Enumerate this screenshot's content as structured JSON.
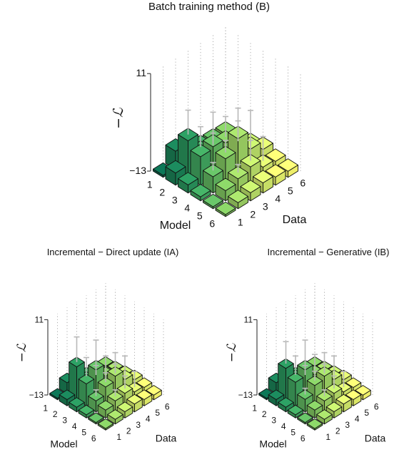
{
  "chart_data": [
    {
      "type": "bar3d",
      "title": "Batch training method (B)",
      "xlabel": "Model",
      "ylabel": "Data",
      "zlabel": "−ℒ",
      "model_ticks": [
        "1",
        "2",
        "3",
        "4",
        "5",
        "6"
      ],
      "data_ticks": [
        "1",
        "2",
        "3",
        "4",
        "5",
        "6"
      ],
      "zlim": [
        -13,
        11
      ],
      "z_ticks": [
        "−13",
        "11"
      ],
      "values": [
        [
          -12.5,
          -8.5,
          -11,
          -11.5,
          -11.8,
          -12
        ],
        [
          -10,
          -4,
          -9,
          -10.5,
          -11,
          -11.5
        ],
        [
          -11,
          -6,
          -5.5,
          -6.5,
          -9.5,
          -11
        ],
        [
          -12,
          -9,
          -6.5,
          -3.5,
          -8,
          -10
        ],
        [
          -12.5,
          -10.5,
          -9.5,
          -8.5,
          -10.5,
          -11
        ],
        [
          -12.5,
          -11.5,
          -11,
          -10.5,
          -11,
          -11.5
        ]
      ],
      "errors": [
        [
          0,
          0,
          0,
          0,
          0,
          0
        ],
        [
          0,
          6,
          5,
          3,
          0,
          0
        ],
        [
          0,
          0,
          7,
          5,
          5,
          0
        ],
        [
          0,
          2,
          3,
          6,
          8,
          0
        ],
        [
          0,
          0,
          2,
          5,
          6,
          0
        ],
        [
          0,
          0,
          0,
          0,
          0,
          0
        ]
      ]
    },
    {
      "type": "bar3d",
      "title": "Incremental − Direct update (IA)",
      "xlabel": "Model",
      "ylabel": "Data",
      "zlabel": "−ℒ",
      "model_ticks": [
        "1",
        "2",
        "3",
        "4",
        "5",
        "6"
      ],
      "data_ticks": [
        "1",
        "2",
        "3",
        "4",
        "5",
        "6"
      ],
      "zlim": [
        -13,
        11
      ],
      "z_ticks": [
        "−13",
        "11"
      ],
      "values": [
        [
          -12.5,
          -9.5,
          -11,
          -11.5,
          -11.8,
          -12
        ],
        [
          -11,
          -2.5,
          -9,
          -10.5,
          -11,
          -11.5
        ],
        [
          -11.5,
          -6,
          -3.5,
          -7.5,
          -10,
          -11
        ],
        [
          -12,
          -9.5,
          -7,
          -5.5,
          -8.5,
          -10.5
        ],
        [
          -12.5,
          -10.5,
          -9.5,
          -9,
          -10.5,
          -11
        ],
        [
          -12.5,
          -11.5,
          -11,
          -10.5,
          -11,
          -11.5
        ]
      ],
      "errors": [
        [
          0,
          0,
          0,
          0,
          0,
          0
        ],
        [
          0,
          8,
          6,
          3,
          0,
          0
        ],
        [
          0,
          0,
          8,
          5,
          3,
          0
        ],
        [
          0,
          2,
          3,
          6,
          6,
          0
        ],
        [
          0,
          0,
          2,
          4,
          5,
          0
        ],
        [
          0,
          0,
          0,
          0,
          0,
          0
        ]
      ]
    },
    {
      "type": "bar3d",
      "title": "Incremental − Generative (IB)",
      "xlabel": "Model",
      "ylabel": "Data",
      "zlabel": "−ℒ",
      "model_ticks": [
        "1",
        "2",
        "3",
        "4",
        "5",
        "6"
      ],
      "data_ticks": [
        "1",
        "2",
        "3",
        "4",
        "5",
        "6"
      ],
      "zlim": [
        -13,
        11
      ],
      "z_ticks": [
        "−13",
        "11"
      ],
      "values": [
        [
          -12.5,
          -9.5,
          -11,
          -11.5,
          -11.8,
          -12
        ],
        [
          -11,
          -3,
          -8.5,
          -10.5,
          -11,
          -11.5
        ],
        [
          -11.5,
          -5.5,
          -3.5,
          -7,
          -10,
          -11
        ],
        [
          -12,
          -9,
          -6.5,
          -5.5,
          -8.5,
          -10.5
        ],
        [
          -12.5,
          -10.5,
          -9.5,
          -9,
          -10.5,
          -11
        ],
        [
          -12.5,
          -11.5,
          -11,
          -10.5,
          -11,
          -11.5
        ]
      ],
      "errors": [
        [
          0,
          0,
          0,
          0,
          0,
          0
        ],
        [
          0,
          7,
          6,
          3,
          0,
          0
        ],
        [
          0,
          0,
          8,
          5,
          3,
          0
        ],
        [
          0,
          2,
          3,
          6,
          6,
          0
        ],
        [
          0,
          0,
          2,
          4,
          5,
          0
        ],
        [
          0,
          0,
          0,
          0,
          0,
          0
        ]
      ]
    }
  ]
}
